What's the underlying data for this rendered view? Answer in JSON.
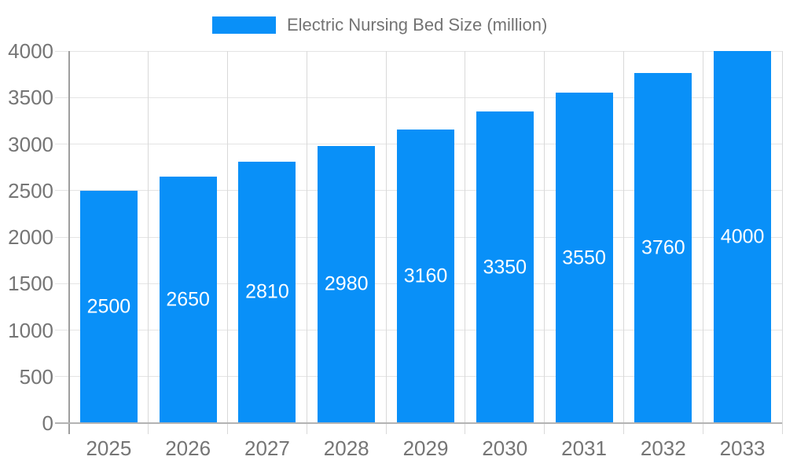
{
  "legend": {
    "items": [
      {
        "label": "Electric Nursing Bed Size (million)"
      }
    ]
  },
  "chart_data": {
    "type": "bar",
    "title": "Electric Nursing Bed Size (million)",
    "categories": [
      "2025",
      "2026",
      "2027",
      "2028",
      "2029",
      "2030",
      "2031",
      "2032",
      "2033"
    ],
    "values": [
      2500,
      2650,
      2810,
      2980,
      3160,
      3350,
      3550,
      3760,
      4000
    ],
    "series": [
      {
        "name": "Electric Nursing Bed Size (million)",
        "values": [
          2500,
          2650,
          2810,
          2980,
          3160,
          3350,
          3550,
          3760,
          4000
        ]
      }
    ],
    "xlabel": "",
    "ylabel": "",
    "ylim": [
      0,
      4000
    ],
    "yticks": [
      0,
      500,
      1000,
      1500,
      2000,
      2500,
      3000,
      3500,
      4000
    ],
    "grid": true,
    "legend_position": "top",
    "value_labels": "inside-center",
    "colors": {
      "bar": "#0990F8",
      "grid_line_h": "#e4e4e4",
      "grid_line_v": "#d9d9d9",
      "axis_line_y": "#9e9e9e",
      "axis_line_x": "#b3b3b3",
      "tick_text": "#757575",
      "legend_text": "#737373",
      "value_label_text": "#ffffff",
      "background": "#ffffff"
    }
  }
}
